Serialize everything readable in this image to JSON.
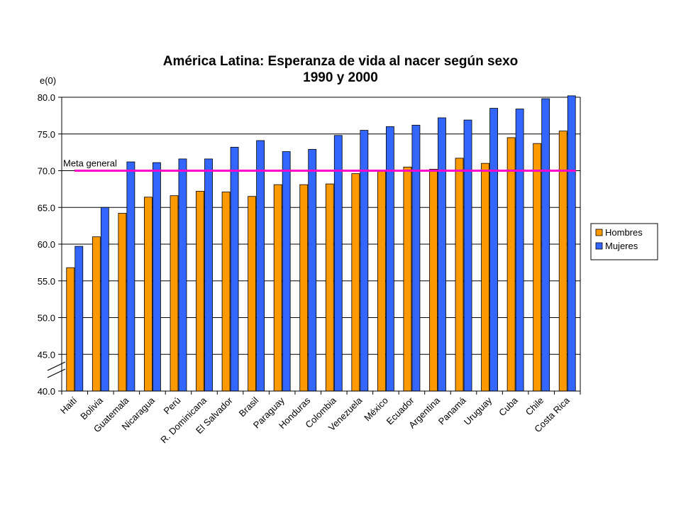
{
  "chart_data": {
    "type": "bar",
    "title": "América Latina: Esperanza de vida al nacer según sexo",
    "subtitle": "1990 y 2000",
    "ylabel": "e(0)",
    "xlabel": "",
    "ylim": [
      40,
      80
    ],
    "yticks": [
      "40.0",
      "45.0",
      "50.0",
      "55.0",
      "60.0",
      "65.0",
      "70.0",
      "75.0",
      "80.0"
    ],
    "grid": true,
    "legend_position": "right",
    "categories": [
      "Haití",
      "Bolivia",
      "Guatemala",
      "Nicaragua",
      "Perú",
      "R. Dominicana",
      "El Salvador",
      "Brasil",
      "Paraguay",
      "Honduras",
      "Colombia",
      "Venezuela",
      "México",
      "Ecuador",
      "Argentina",
      "Panamá",
      "Uruguay",
      "Cuba",
      "Chile",
      "Costa Rica"
    ],
    "series": [
      {
        "name": "Hombres",
        "color": "#FF9900",
        "values": [
          56.8,
          61.0,
          64.2,
          66.4,
          66.6,
          67.2,
          67.1,
          66.5,
          68.1,
          68.1,
          68.2,
          69.6,
          70.0,
          70.5,
          70.2,
          71.7,
          71.0,
          74.5,
          73.7,
          75.4
        ]
      },
      {
        "name": "Mujeres",
        "color": "#3366FF",
        "values": [
          59.7,
          65.0,
          71.2,
          71.1,
          71.6,
          71.6,
          73.2,
          74.1,
          72.6,
          72.9,
          74.8,
          75.5,
          76.0,
          76.2,
          77.2,
          76.9,
          78.5,
          78.4,
          79.8,
          80.2
        ]
      }
    ],
    "reference_line": {
      "label": "Meta general",
      "value": 70.0,
      "color": "#FF00CC"
    }
  }
}
